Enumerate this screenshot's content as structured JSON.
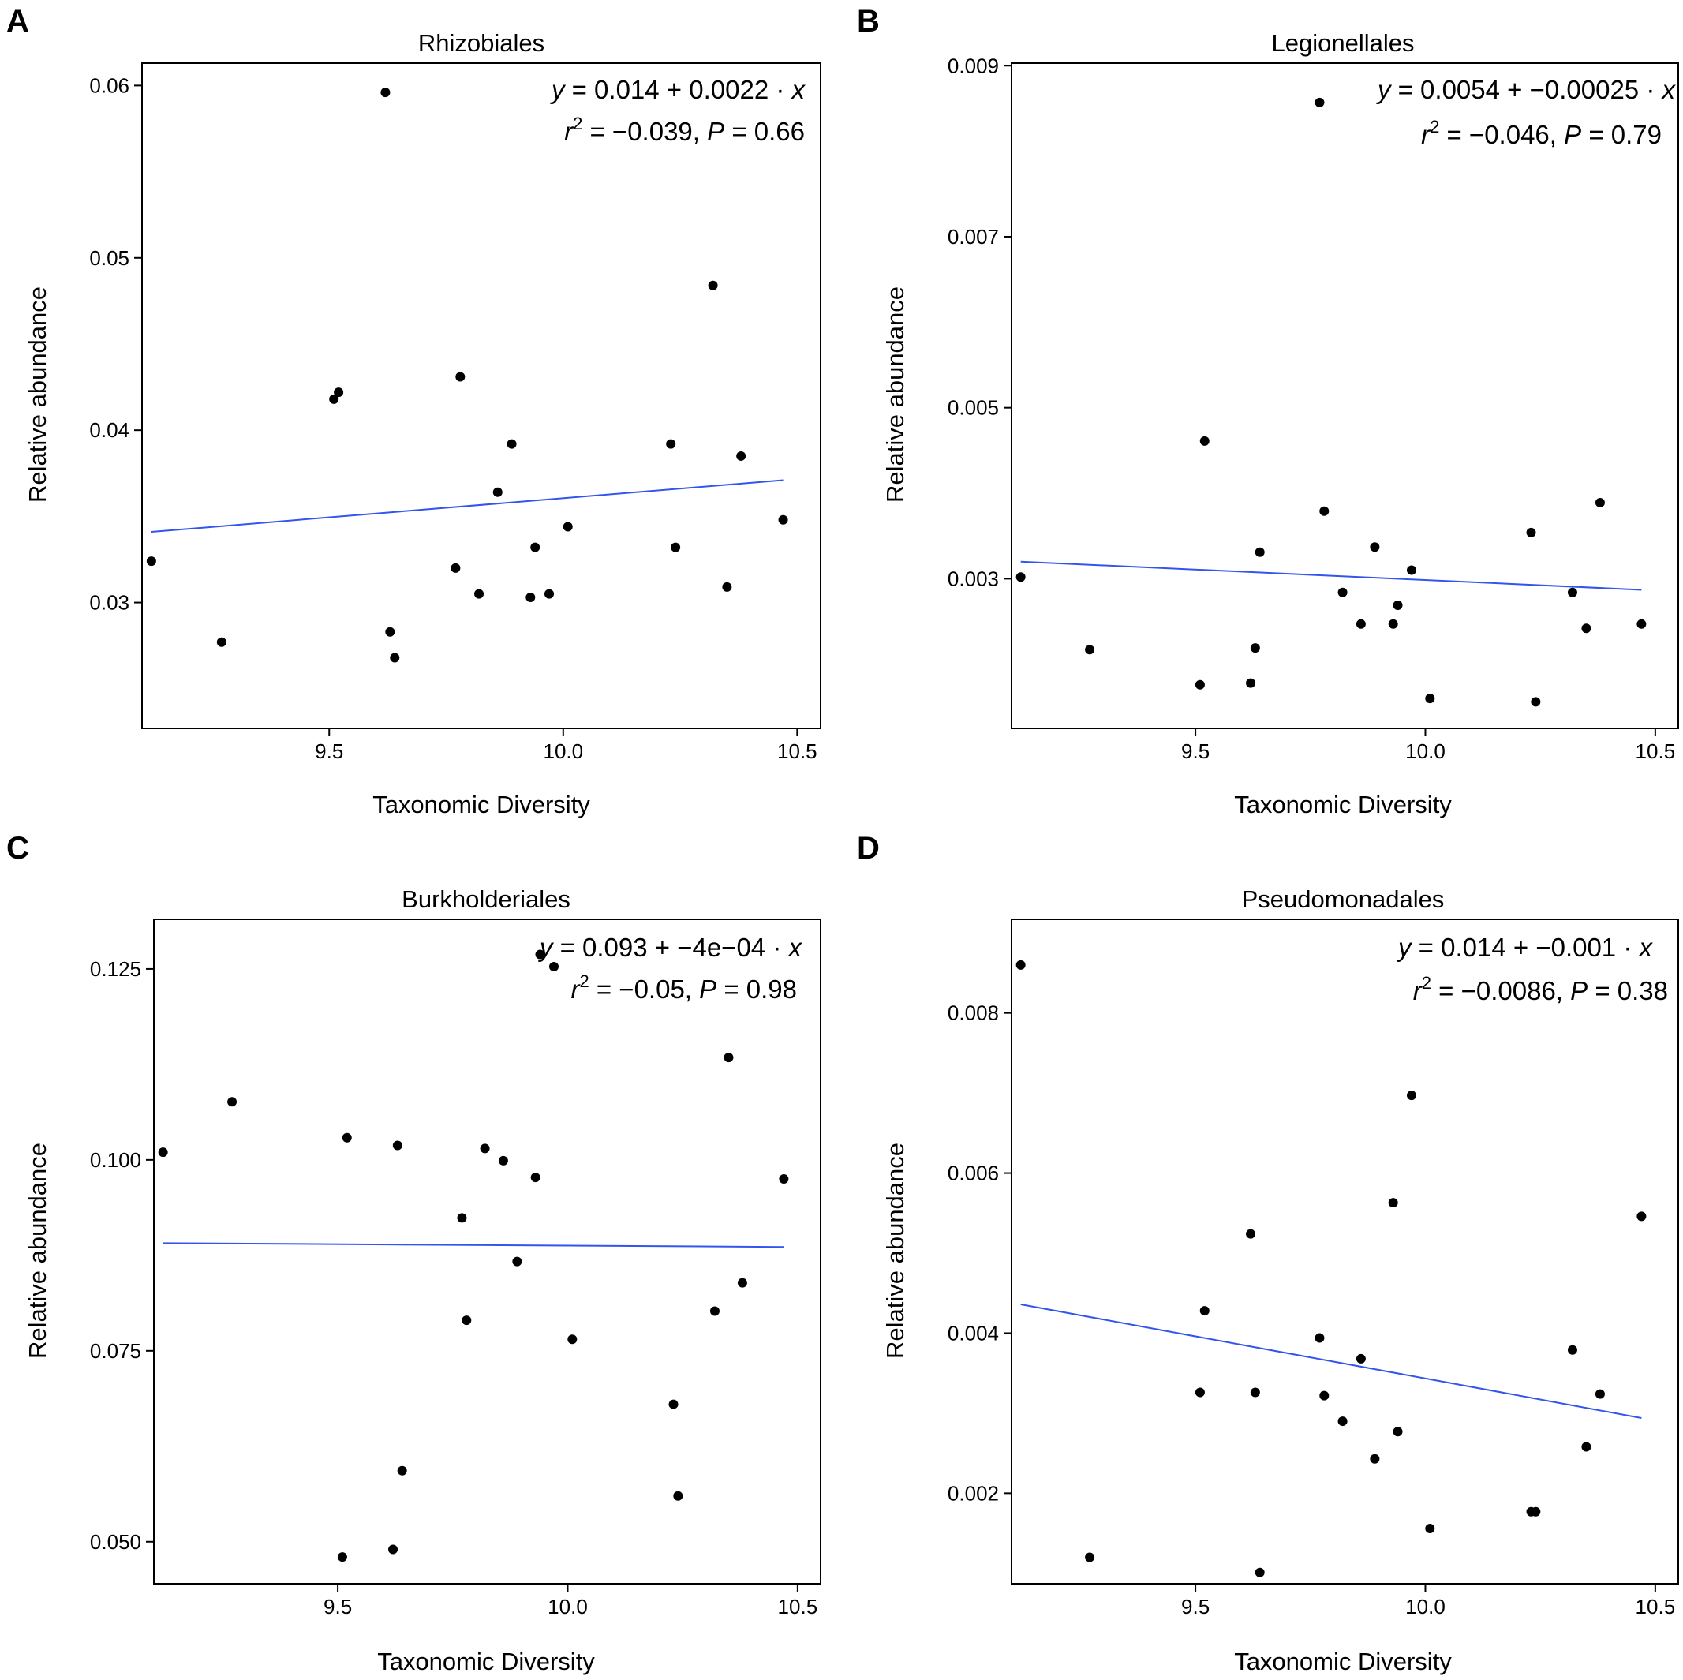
{
  "chart_data": [
    {
      "type": "scatter",
      "panel": "A",
      "title": "Rhizobiales",
      "xlabel": "Taxonomic Diversity",
      "ylabel": "Relative abundance",
      "xlim": [
        9.1,
        10.55
      ],
      "ylim": [
        0.0227,
        0.0613
      ],
      "xticks": [
        9.5,
        10.0,
        10.5
      ],
      "xtick_labels": [
        "9.5",
        "10.0",
        "10.5"
      ],
      "yticks": [
        0.03,
        0.04,
        0.05,
        0.06
      ],
      "ytick_labels": [
        "0.03",
        "0.04",
        "0.05",
        "0.06"
      ],
      "fit": {
        "x": [
          9.12,
          10.47
        ],
        "y": [
          0.0341,
          0.0371
        ]
      },
      "annotation": {
        "y": "y",
        "eq1": " = 0.014 + 0.0022 · ",
        "x": "x",
        "r": "r",
        "sup": "2",
        "eq2": " = −0.039,  ",
        "p": "P",
        "eq3": " = 0.66"
      },
      "points": {
        "x": [
          9.12,
          9.27,
          9.51,
          9.52,
          9.62,
          9.63,
          9.64,
          9.77,
          9.78,
          9.82,
          9.86,
          9.89,
          9.93,
          9.94,
          9.97,
          10.01,
          10.23,
          10.24,
          10.32,
          10.35,
          10.38,
          10.47
        ],
        "y": [
          0.0324,
          0.0277,
          0.0418,
          0.0422,
          0.0596,
          0.0283,
          0.0268,
          0.032,
          0.0431,
          0.0305,
          0.0364,
          0.0392,
          0.0303,
          0.0332,
          0.0305,
          0.0344,
          0.0392,
          0.0332,
          0.0484,
          0.0309,
          0.0385,
          0.0348
        ]
      }
    },
    {
      "type": "scatter",
      "panel": "B",
      "title": "Legionellales",
      "xlabel": "Taxonomic Diversity",
      "ylabel": "Relative abundance",
      "xlim": [
        9.1,
        10.55
      ],
      "ylim": [
        0.00125,
        0.00903
      ],
      "xticks": [
        9.5,
        10.0,
        10.5
      ],
      "xtick_labels": [
        "9.5",
        "10.0",
        "10.5"
      ],
      "yticks": [
        0.003,
        0.005,
        0.007,
        0.009
      ],
      "ytick_labels": [
        "0.003",
        "0.005",
        "0.007",
        "0.009"
      ],
      "fit": {
        "x": [
          9.12,
          10.47
        ],
        "y": [
          0.0032,
          0.00287
        ]
      },
      "annotation": {
        "y": "y",
        "eq1": " = 0.0054 + −0.00025 · ",
        "x": "x",
        "r": "r",
        "sup": "2",
        "eq2": " = −0.046,  ",
        "p": "P",
        "eq3": " = 0.79"
      },
      "points": {
        "x": [
          9.12,
          9.27,
          9.51,
          9.52,
          9.62,
          9.63,
          9.64,
          9.77,
          9.78,
          9.82,
          9.86,
          9.89,
          9.93,
          9.94,
          9.97,
          10.01,
          10.23,
          10.24,
          10.32,
          10.35,
          10.38,
          10.47
        ],
        "y": [
          0.00302,
          0.00217,
          0.00176,
          0.00461,
          0.00178,
          0.00219,
          0.00331,
          0.00857,
          0.00379,
          0.00284,
          0.00247,
          0.00337,
          0.00247,
          0.00269,
          0.0031,
          0.0016,
          0.00354,
          0.00156,
          0.00284,
          0.00242,
          0.00389,
          0.00247
        ]
      }
    },
    {
      "type": "scatter",
      "panel": "C",
      "title": "Burkholderiales",
      "xlabel": "Taxonomic Diversity",
      "ylabel": "Relative abundance",
      "xlim": [
        9.1,
        10.55
      ],
      "ylim": [
        0.0445,
        0.1315
      ],
      "xticks": [
        9.5,
        10.0,
        10.5
      ],
      "xtick_labels": [
        "9.5",
        "10.0",
        "10.5"
      ],
      "yticks": [
        0.05,
        0.075,
        0.1,
        0.125
      ],
      "ytick_labels": [
        "0.050",
        "0.075",
        "0.100",
        "0.125"
      ],
      "fit": {
        "x": [
          9.12,
          10.47
        ],
        "y": [
          0.0891,
          0.0886
        ]
      },
      "annotation": {
        "y": "y",
        "eq1": " = 0.093 + −4e−04 · ",
        "x": "x",
        "r": "r",
        "sup": "2",
        "eq2": " = −0.05,  ",
        "p": "P",
        "eq3": " = 0.98"
      },
      "points": {
        "x": [
          9.12,
          9.27,
          9.51,
          9.52,
          9.62,
          9.63,
          9.64,
          9.77,
          9.78,
          9.82,
          9.86,
          9.89,
          9.93,
          9.94,
          9.97,
          10.01,
          10.23,
          10.24,
          10.32,
          10.35,
          10.38,
          10.47
        ],
        "y": [
          0.101,
          0.1076,
          0.048,
          0.1029,
          0.049,
          0.1019,
          0.0593,
          0.0924,
          0.079,
          0.1015,
          0.0999,
          0.0867,
          0.0977,
          0.1269,
          0.1253,
          0.0765,
          0.068,
          0.056,
          0.0802,
          0.1134,
          0.0839,
          0.0975
        ]
      }
    },
    {
      "type": "scatter",
      "panel": "D",
      "title": "Pseudomonadales",
      "xlabel": "Taxonomic Diversity",
      "ylabel": "Relative abundance",
      "xlim": [
        9.1,
        10.55
      ],
      "ylim": [
        0.00087,
        0.00917
      ],
      "xticks": [
        9.5,
        10.0,
        10.5
      ],
      "xtick_labels": [
        "9.5",
        "10.0",
        "10.5"
      ],
      "yticks": [
        0.002,
        0.004,
        0.006,
        0.008
      ],
      "ytick_labels": [
        "0.002",
        "0.004",
        "0.006",
        "0.008"
      ],
      "fit": {
        "x": [
          9.12,
          10.47
        ],
        "y": [
          0.00436,
          0.00294
        ]
      },
      "annotation": {
        "y": "y",
        "eq1": " = 0.014 + −0.001 · ",
        "x": "x",
        "r": "r",
        "sup": "2",
        "eq2": " = −0.0086,  ",
        "p": "P",
        "eq3": " = 0.38"
      },
      "points": {
        "x": [
          9.12,
          9.27,
          9.51,
          9.52,
          9.62,
          9.63,
          9.64,
          9.77,
          9.78,
          9.82,
          9.86,
          9.89,
          9.93,
          9.94,
          9.97,
          10.01,
          10.23,
          10.24,
          10.32,
          10.35,
          10.38,
          10.47
        ],
        "y": [
          0.0086,
          0.0012,
          0.00326,
          0.00428,
          0.00524,
          0.00326,
          0.00101,
          0.00394,
          0.00322,
          0.0029,
          0.00368,
          0.00243,
          0.00563,
          0.00277,
          0.00697,
          0.00156,
          0.00177,
          0.00177,
          0.00379,
          0.00258,
          0.00324,
          0.00546
        ]
      }
    }
  ]
}
